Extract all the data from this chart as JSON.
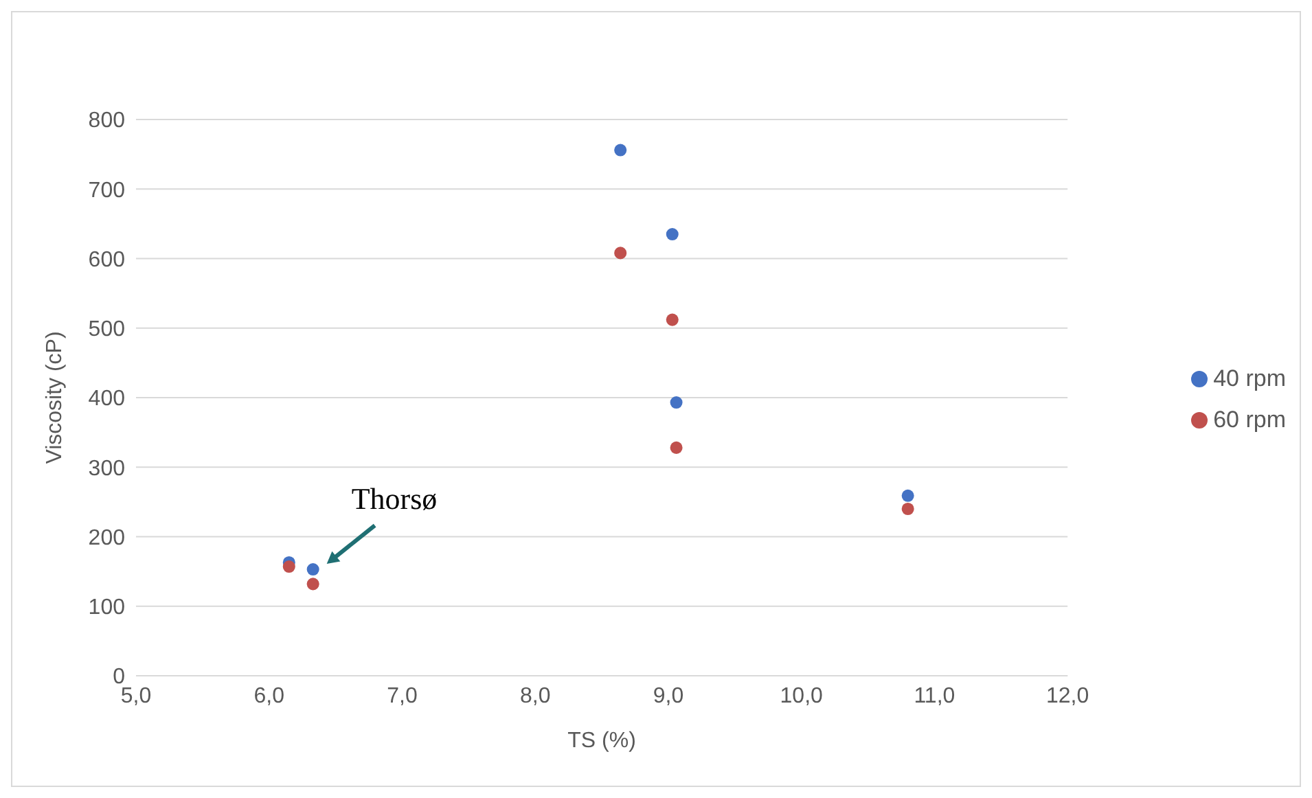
{
  "chart_data": {
    "type": "scatter",
    "xlabel": "TS (%)",
    "ylabel": "Viscosity (cP)",
    "xlim": [
      5,
      12
    ],
    "xticks": [
      {
        "value": 5,
        "label": "5,0"
      },
      {
        "value": 6,
        "label": "6,0"
      },
      {
        "value": 7,
        "label": "7,0"
      },
      {
        "value": 8,
        "label": "8,0"
      },
      {
        "value": 9,
        "label": "9,0"
      },
      {
        "value": 10,
        "label": "10,0"
      },
      {
        "value": 11,
        "label": "11,0"
      },
      {
        "value": 12,
        "label": "12,0"
      }
    ],
    "ylim": [
      0,
      800
    ],
    "yticks": [
      0,
      100,
      200,
      300,
      400,
      500,
      600,
      700,
      800
    ],
    "series": [
      {
        "name": "40 rpm",
        "color": "#4472c4",
        "x": [
          6.15,
          6.33,
          8.64,
          9.03,
          9.06,
          10.8
        ],
        "values": [
          163,
          153,
          756,
          635,
          393,
          259
        ]
      },
      {
        "name": "60 rpm",
        "color": "#c0504d",
        "x": [
          6.15,
          6.33,
          8.64,
          9.03,
          9.06,
          10.8
        ],
        "values": [
          157,
          132,
          608,
          512,
          328,
          240
        ]
      }
    ],
    "annotations": [
      {
        "text": "Thorsø",
        "x": 6.33,
        "y": 153
      }
    ],
    "grid": "y",
    "legend": "right",
    "marker": "circle"
  }
}
